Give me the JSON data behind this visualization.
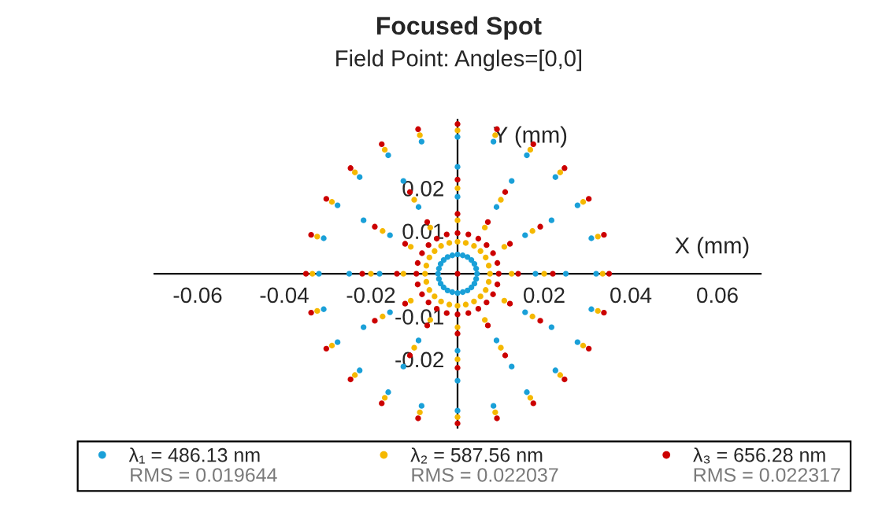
{
  "chart_data": {
    "type": "scatter",
    "title": "Focused Spot",
    "subtitle": "Field Point: Angles=[0,0]",
    "xlabel": "X (mm)",
    "ylabel": "Y (mm)",
    "xlim": [
      -0.07,
      0.07
    ],
    "ylim": [
      -0.036,
      0.036
    ],
    "xticks": [
      -0.06,
      -0.04,
      -0.02,
      0.02,
      0.04,
      0.06
    ],
    "yticks": [
      -0.02,
      -0.01,
      0.01,
      0.02
    ],
    "marker": "circle",
    "legend": "bottom",
    "annotations": [
      "RMS = 0.019644",
      "RMS = 0.022037",
      "RMS = 0.022317"
    ],
    "series": [
      {
        "name": "λ₁ = 486.13 nm",
        "color": "#1aa0d8",
        "x": [
          0.0045,
          0.0043,
          0.0039,
          0.0032,
          0.0023,
          0.0012,
          0,
          -0.0012,
          -0.0023,
          -0.0032,
          -0.0039,
          -0.0043,
          -0.0045,
          -0.0043,
          -0.0039,
          -0.0032,
          -0.0023,
          -0.0012,
          0,
          0.0012,
          0.0023,
          0.0032,
          0.0039,
          0.0043,
          0.018,
          0.0156,
          0.009,
          0,
          -0.009,
          -0.0156,
          -0.018,
          -0.0156,
          -0.009,
          0,
          0.009,
          0.0156,
          0.025,
          0.0217,
          0.0125,
          0,
          -0.0125,
          -0.0217,
          -0.025,
          -0.0217,
          -0.0125,
          0,
          0.0125,
          0.0217,
          0.032,
          0.0309,
          0.0277,
          0.0226,
          0.016,
          0.0083,
          0,
          -0.0083,
          -0.016,
          -0.0226,
          -0.0277,
          -0.0309,
          -0.032,
          -0.0309,
          -0.0277,
          -0.0226,
          -0.016,
          -0.0083,
          0,
          0.0083,
          0.016,
          0.0226,
          0.0277,
          0.0309
        ],
        "values": [
          0,
          0.0012,
          0.0023,
          0.0032,
          0.0039,
          0.0043,
          0.0045,
          0.0043,
          0.0039,
          0.0032,
          0.0023,
          0.0012,
          0,
          -0.0012,
          -0.0023,
          -0.0032,
          -0.0039,
          -0.0043,
          -0.0045,
          -0.0043,
          -0.0039,
          -0.0032,
          -0.0023,
          -0.0012,
          0,
          0.009,
          0.0156,
          0.018,
          0.0156,
          0.009,
          0,
          -0.009,
          -0.0156,
          -0.018,
          -0.0156,
          -0.009,
          0,
          0.0125,
          0.0217,
          0.025,
          0.0217,
          0.0125,
          0,
          -0.0125,
          -0.0217,
          -0.025,
          -0.0217,
          -0.0125,
          0,
          0.0083,
          0.016,
          0.0226,
          0.0277,
          0.0309,
          0.032,
          0.0309,
          0.0277,
          0.0226,
          0.016,
          0.0083,
          0,
          -0.0083,
          -0.016,
          -0.0226,
          -0.0277,
          -0.0309,
          -0.032,
          -0.0309,
          -0.0277,
          -0.0226,
          -0.016,
          -0.0083
        ]
      },
      {
        "name": "λ₂ = 587.56 nm",
        "color": "#f5b800",
        "x": [
          0.0075,
          0.0072,
          0.0065,
          0.0053,
          0.0038,
          0.0019,
          0,
          -0.0019,
          -0.0038,
          -0.0053,
          -0.0065,
          -0.0072,
          -0.0075,
          -0.0072,
          -0.0065,
          -0.0053,
          -0.0038,
          -0.0019,
          0,
          0.0019,
          0.0038,
          0.0053,
          0.0065,
          0.0072,
          0.0125,
          0.0108,
          0.0063,
          0,
          -0.0063,
          -0.0108,
          -0.0125,
          -0.0108,
          -0.0063,
          0,
          0.0063,
          0.0108,
          0.02,
          0.0173,
          0.01,
          0,
          -0.01,
          -0.0173,
          -0.02,
          -0.0173,
          -0.01,
          0,
          0.01,
          0.0173,
          0.0335,
          0.0324,
          0.029,
          0.0237,
          0.0168,
          0.0087,
          0,
          -0.0087,
          -0.0168,
          -0.0237,
          -0.029,
          -0.0324,
          -0.0335,
          -0.0324,
          -0.029,
          -0.0237,
          -0.0168,
          -0.0087,
          0,
          0.0087,
          0.0168,
          0.0237,
          0.029,
          0.0324
        ],
        "values": [
          0,
          0.0019,
          0.0038,
          0.0053,
          0.0065,
          0.0072,
          0.0075,
          0.0072,
          0.0065,
          0.0053,
          0.0038,
          0.0019,
          0,
          -0.0019,
          -0.0038,
          -0.0053,
          -0.0065,
          -0.0072,
          -0.0075,
          -0.0072,
          -0.0065,
          -0.0053,
          -0.0038,
          -0.0019,
          0,
          0.0063,
          0.0108,
          0.0125,
          0.0108,
          0.0063,
          0,
          -0.0063,
          -0.0108,
          -0.0125,
          -0.0108,
          -0.0063,
          0,
          0.01,
          0.0173,
          0.02,
          0.0173,
          0.01,
          0,
          -0.01,
          -0.0173,
          -0.02,
          -0.0173,
          -0.01,
          0,
          0.0087,
          0.0168,
          0.0237,
          0.029,
          0.0324,
          0.0335,
          0.0324,
          0.029,
          0.0237,
          0.0168,
          0.0087,
          0,
          -0.0087,
          -0.0168,
          -0.0237,
          -0.029,
          -0.0324,
          -0.0335,
          -0.0324,
          -0.029,
          -0.0237,
          -0.0168,
          -0.0087
        ]
      },
      {
        "name": "λ₃ = 656.28 nm",
        "color": "#cc0000",
        "x": [
          0,
          0.0095,
          0.0092,
          0.0082,
          0.0067,
          0.0048,
          0.0025,
          0,
          -0.0025,
          -0.0048,
          -0.0067,
          -0.0082,
          -0.0092,
          -0.0095,
          -0.0092,
          -0.0082,
          -0.0067,
          -0.0048,
          -0.0025,
          0,
          0.0025,
          0.0048,
          0.0067,
          0.0082,
          0.0092,
          0.014,
          0.0121,
          0.007,
          0,
          -0.007,
          -0.0121,
          -0.014,
          -0.0121,
          -0.007,
          0,
          0.007,
          0.0121,
          0.022,
          0.0191,
          0.011,
          0,
          -0.011,
          -0.0191,
          -0.022,
          -0.0191,
          -0.011,
          0,
          0.011,
          0.0191,
          0.035,
          0.0338,
          0.0303,
          0.0247,
          0.0175,
          0.0091,
          0,
          -0.0091,
          -0.0175,
          -0.0247,
          -0.0303,
          -0.0338,
          -0.035,
          -0.0338,
          -0.0303,
          -0.0247,
          -0.0175,
          -0.0091,
          0,
          0.0091,
          0.0175,
          0.0247,
          0.0303,
          0.0338
        ],
        "values": [
          0,
          0,
          0.0025,
          0.0048,
          0.0067,
          0.0082,
          0.0092,
          0.0095,
          0.0092,
          0.0082,
          0.0067,
          0.0048,
          0.0025,
          0,
          -0.0025,
          -0.0048,
          -0.0067,
          -0.0082,
          -0.0092,
          -0.0095,
          -0.0092,
          -0.0082,
          -0.0067,
          -0.0048,
          -0.0025,
          0,
          0.007,
          0.0121,
          0.014,
          0.0121,
          0.007,
          0,
          -0.007,
          -0.0121,
          -0.014,
          -0.0121,
          -0.007,
          0,
          0.011,
          0.0191,
          0.022,
          0.0191,
          0.011,
          0,
          -0.011,
          -0.0191,
          -0.022,
          -0.0191,
          -0.011,
          0,
          0.0091,
          0.0175,
          0.0247,
          0.0303,
          0.0338,
          0.035,
          0.0338,
          0.0303,
          0.0247,
          0.0175,
          0.0091,
          0,
          -0.0091,
          -0.0175,
          -0.0247,
          -0.0303,
          -0.0338,
          -0.035,
          -0.0338,
          -0.0303,
          -0.0247,
          -0.0175,
          -0.0091
        ]
      }
    ]
  }
}
